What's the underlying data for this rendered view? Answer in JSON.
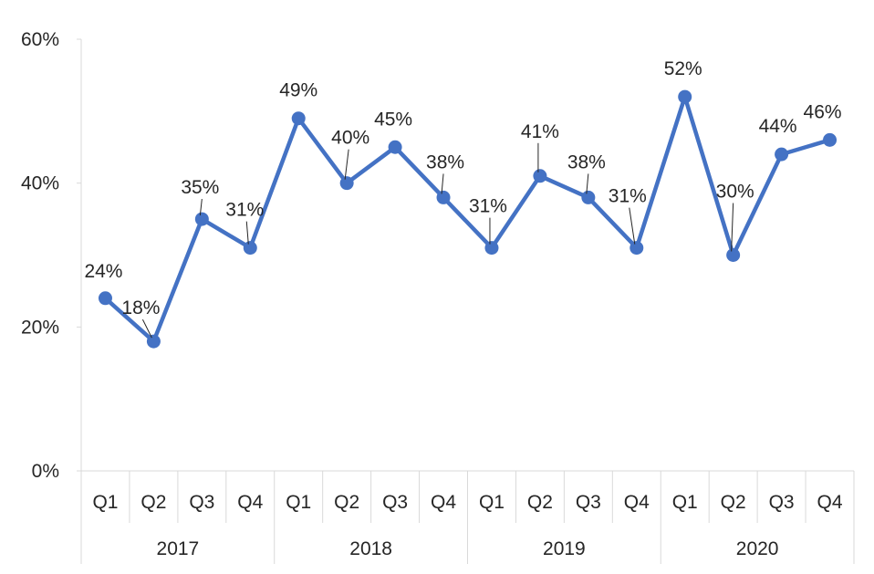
{
  "chart_data": {
    "type": "line",
    "title": "",
    "xlabel": "",
    "ylabel": "",
    "ylim": [
      0,
      0.6
    ],
    "yticks": [
      "0%",
      "20%",
      "40%",
      "60%"
    ],
    "yticks_values": [
      0,
      0.2,
      0.4,
      0.6
    ],
    "grid": false,
    "legend": "none",
    "line_color": "#4472C4",
    "years": [
      "2017",
      "2018",
      "2019",
      "2020"
    ],
    "quarters": [
      "Q1",
      "Q2",
      "Q3",
      "Q4",
      "Q1",
      "Q2",
      "Q3",
      "Q4",
      "Q1",
      "Q2",
      "Q3",
      "Q4",
      "Q1",
      "Q2",
      "Q3",
      "Q4"
    ],
    "series": [
      {
        "values": [
          0.24,
          0.18,
          0.35,
          0.31,
          0.49,
          0.4,
          0.45,
          0.38,
          0.31,
          0.41,
          0.38,
          0.31,
          0.52,
          0.3,
          0.44,
          0.46
        ],
        "labels": [
          "24%",
          "18%",
          "35%",
          "31%",
          "49%",
          "40%",
          "45%",
          "38%",
          "31%",
          "41%",
          "38%",
          "31%",
          "52%",
          "30%",
          "44%",
          "46%"
        ]
      }
    ]
  }
}
